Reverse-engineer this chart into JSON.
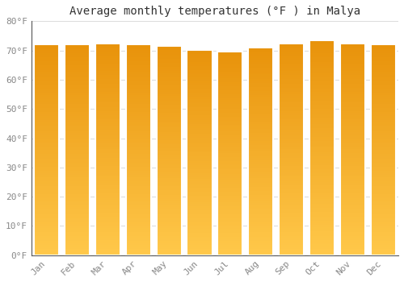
{
  "title": "Average monthly temperatures (°F ) in Malya",
  "months": [
    "Jan",
    "Feb",
    "Mar",
    "Apr",
    "May",
    "Jun",
    "Jul",
    "Aug",
    "Sep",
    "Oct",
    "Nov",
    "Dec"
  ],
  "values": [
    72,
    72,
    72.5,
    72,
    71.5,
    70.2,
    69.7,
    71,
    72.5,
    73.5,
    72.5,
    72
  ],
  "bar_color_top": "#E8920A",
  "bar_color_bottom": "#FFC84A",
  "bar_edge_color": "#ffffff",
  "ylim": [
    0,
    80
  ],
  "yticks": [
    0,
    10,
    20,
    30,
    40,
    50,
    60,
    70,
    80
  ],
  "ytick_labels": [
    "0°F",
    "10°F",
    "20°F",
    "30°F",
    "40°F",
    "50°F",
    "60°F",
    "70°F",
    "80°F"
  ],
  "background_color": "#ffffff",
  "grid_color": "#dddddd",
  "title_fontsize": 10,
  "tick_fontsize": 8,
  "font_family": "monospace",
  "tick_color": "#888888",
  "title_color": "#333333"
}
